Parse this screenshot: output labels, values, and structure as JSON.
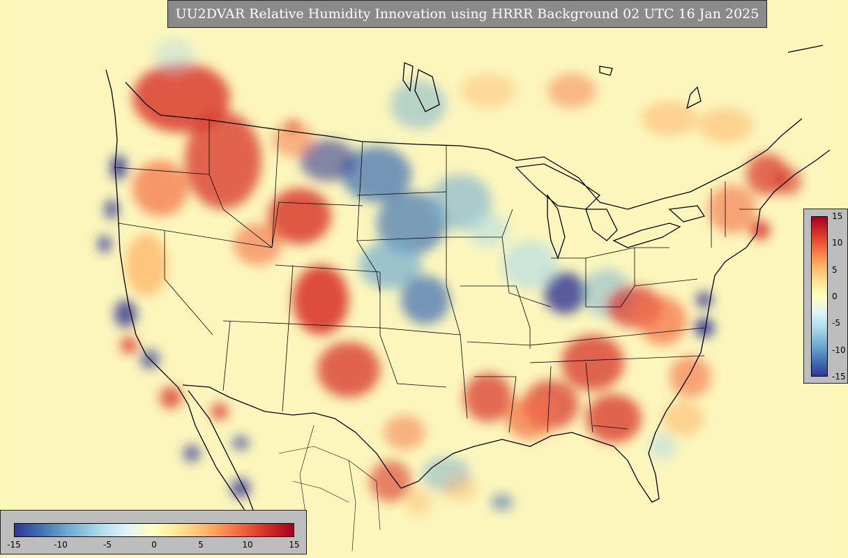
{
  "title": "UU2DVAR Relative Humidity Innovation using HRRR Background 02 UTC 16 Jan 2025",
  "colorbar": {
    "min": -15,
    "max": 15,
    "colors": [
      "#313695",
      "#4575b4",
      "#74add1",
      "#abd9e9",
      "#e0f3f8",
      "#ffffbf",
      "#fee090",
      "#fdae61",
      "#f46d43",
      "#d73027",
      "#a50026"
    ],
    "horizontal_ticks": [
      "-15",
      "-10",
      "-5",
      "0",
      "5",
      "10",
      "15"
    ],
    "vertical_ticks": [
      "15",
      "10",
      "5",
      "0",
      "-5",
      "-10",
      "-15"
    ]
  },
  "map": {
    "background_color": "#fbf7b8",
    "boundary_color": "#000000"
  }
}
